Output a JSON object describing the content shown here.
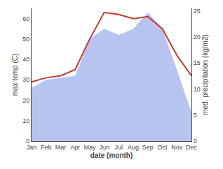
{
  "chart_data": {
    "type": "line",
    "xlabel": "date (month)",
    "ylabel": "max temp (C)",
    "y2label": "med. precipitation (kg/m2)",
    "categories": [
      "Jan",
      "Feb",
      "Mar",
      "Apr",
      "May",
      "Jun",
      "Jul",
      "Aug",
      "Sep",
      "Oct",
      "Nov",
      "Dec"
    ],
    "series": [
      {
        "type": "area",
        "color": "#b8c4f0",
        "values": [
          26,
          30,
          31,
          32,
          50,
          55,
          52,
          55,
          63,
          55,
          35,
          14
        ]
      },
      {
        "type": "line",
        "color": "#c0392b",
        "values": [
          29,
          31,
          32,
          35,
          50,
          63,
          62,
          60,
          61,
          55,
          42,
          32
        ]
      }
    ],
    "ylim": [
      0,
      65
    ],
    "yticks": [
      0,
      10,
      20,
      30,
      40,
      50,
      60
    ],
    "y2lim": [
      0,
      25.5
    ],
    "y2ticks": [
      0,
      5,
      10,
      15,
      20,
      25
    ],
    "grid": false
  }
}
